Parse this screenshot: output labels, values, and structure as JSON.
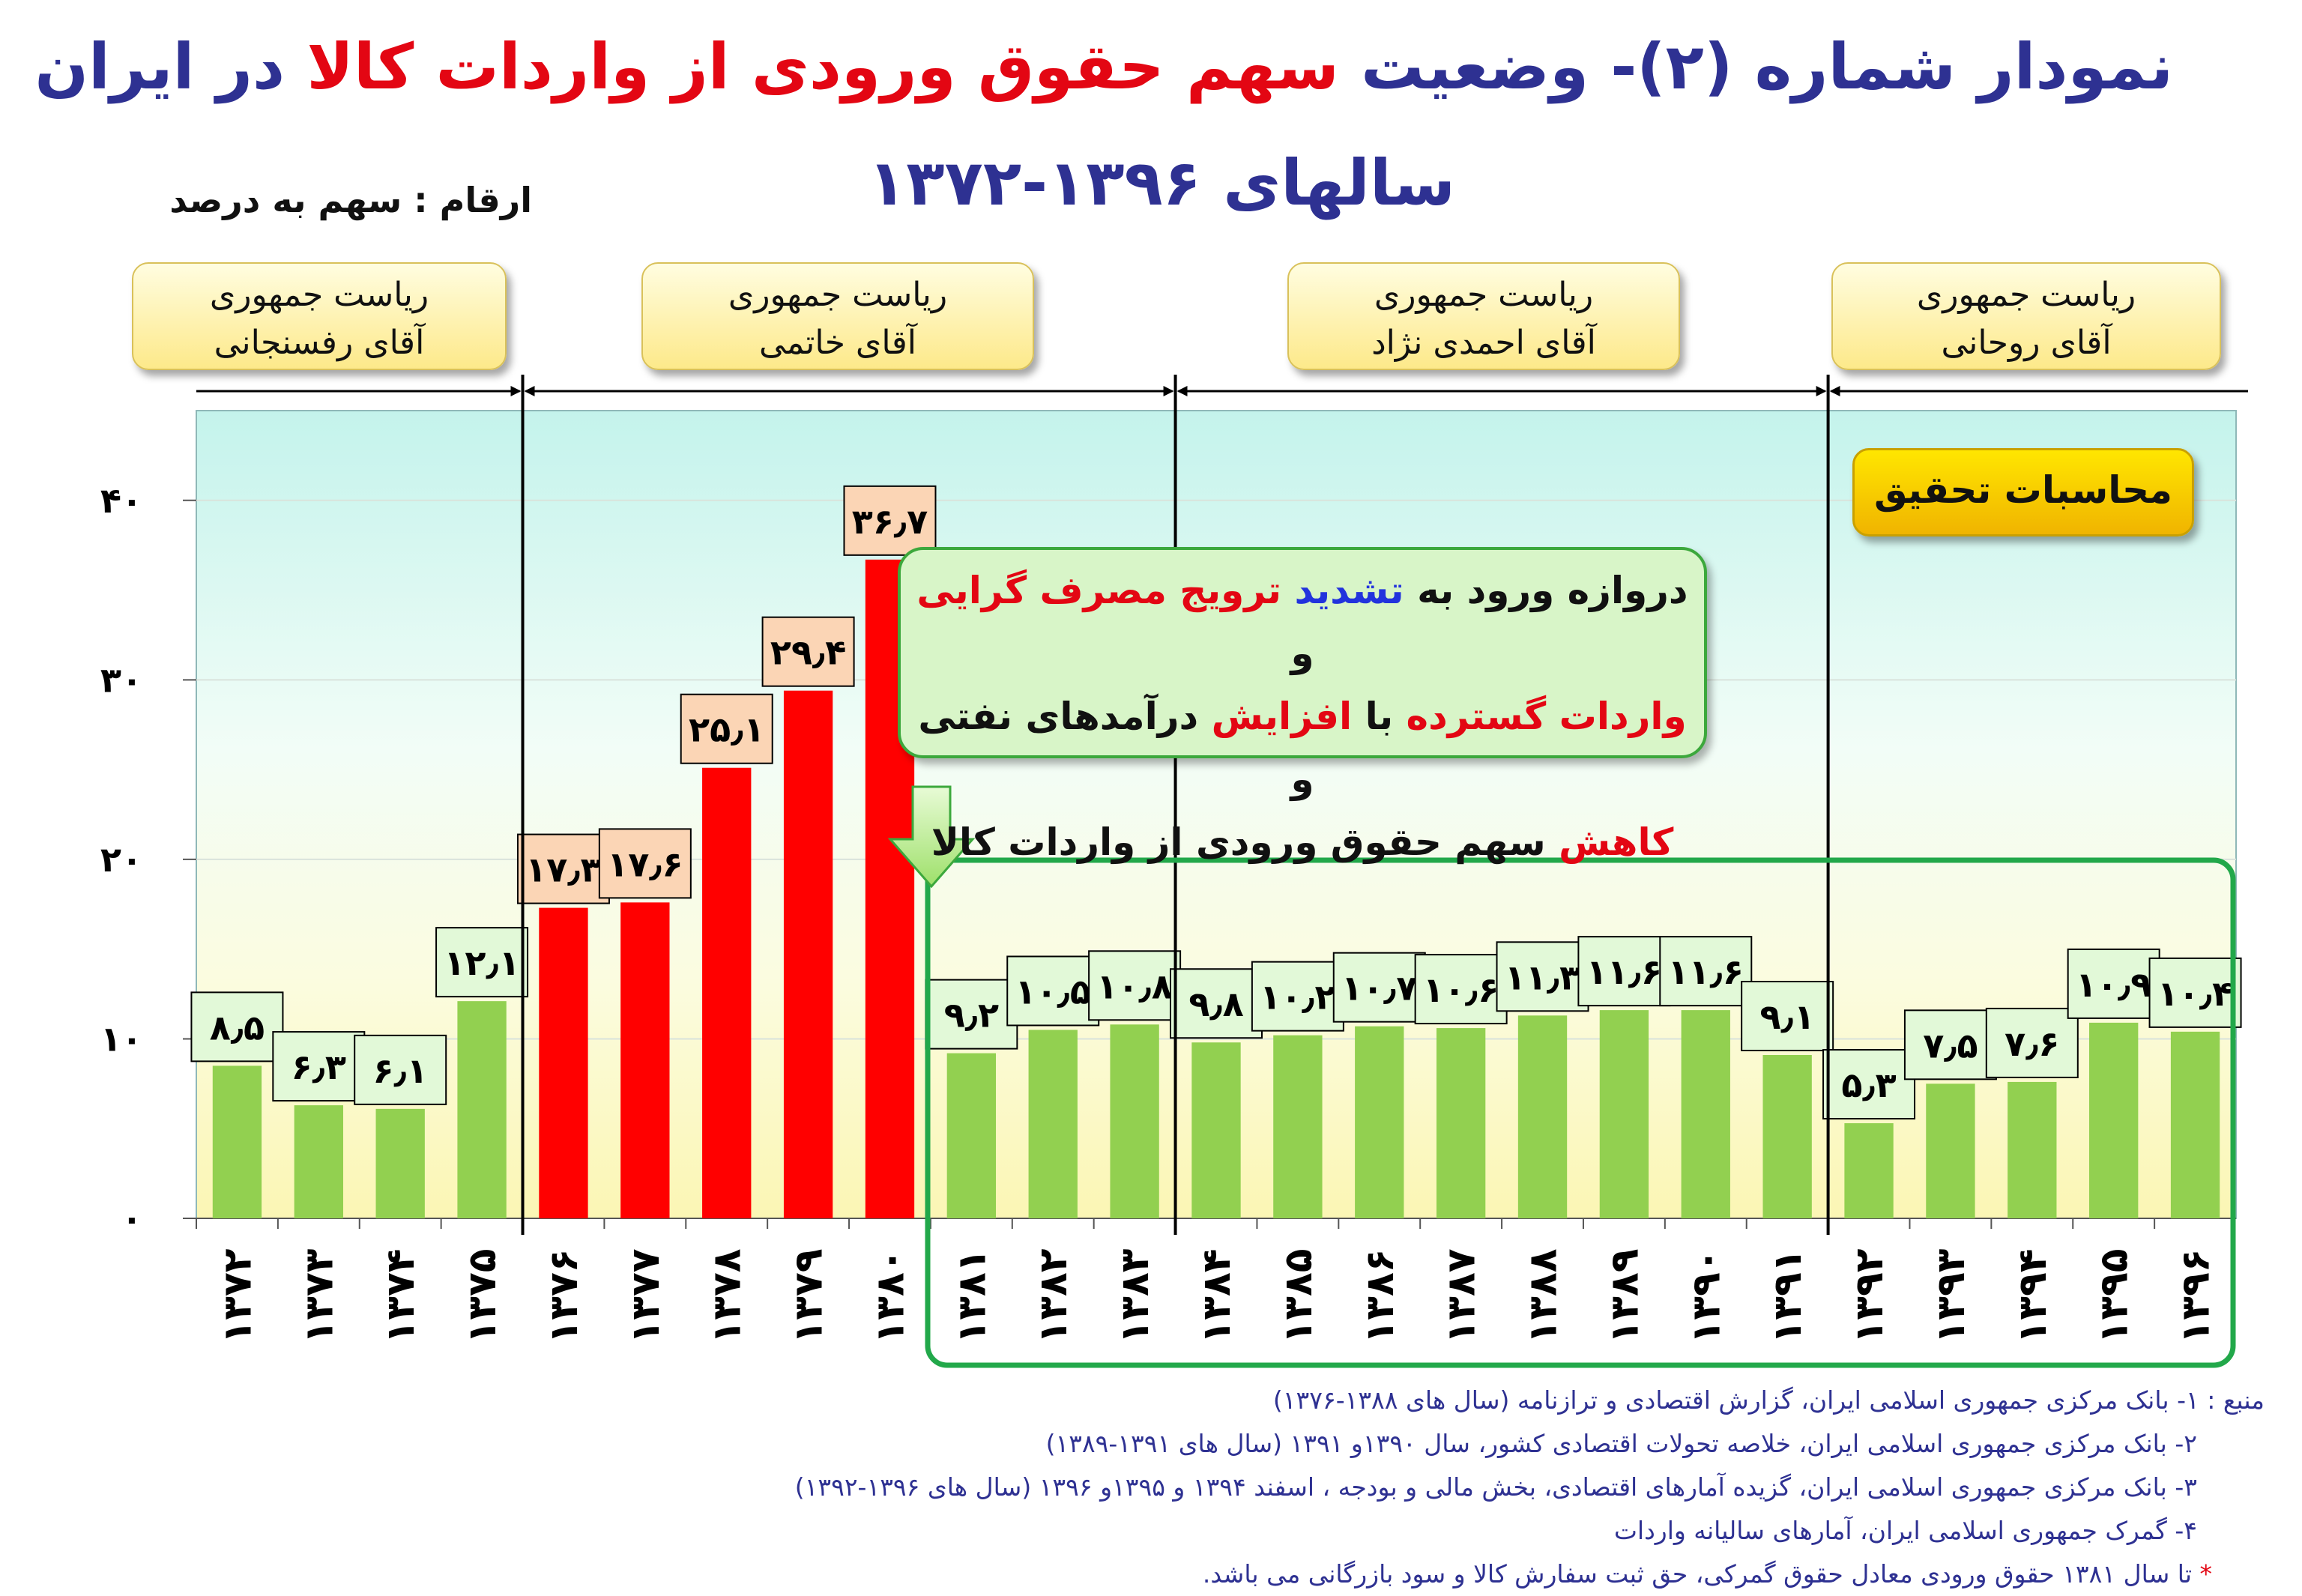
{
  "title": {
    "line1_part1": "نمودار شماره (۲)- وضعیت ",
    "line1_part2": "سهم حقوق ورودی از واردات کالا",
    "line1_part3": " در ایران",
    "line2": "سالهای ۱۳۹۶-۱۳۷۲"
  },
  "units_label": "ارقام : سهم به درصد",
  "presidencies": [
    {
      "line1": "ریاست جمهوری",
      "line2": "آقای رفسنجانی"
    },
    {
      "line1": "ریاست جمهوری",
      "line2": "آقای خاتمی"
    },
    {
      "line1": "ریاست جمهوری",
      "line2": "آقای احمدی نژاد"
    },
    {
      "line1": "ریاست جمهوری",
      "line2": "آقای روحانی"
    }
  ],
  "research_badge": "محاسبات تحقیق",
  "callout": {
    "p1": "دروازه ورود به ",
    "p2": "تشدید",
    "p3": " ",
    "p4": "ترویج مصرف گرایی",
    "p5": " و",
    "p6": "واردات گسترده",
    "p7": " با ",
    "p8": "افزایش",
    "p9": " درآمدهای نفتی و",
    "p10": "کاهش",
    "p11": " سهم حقوق ورودی از واردات کالا"
  },
  "sources": {
    "line1": "منبع : ۱- بانک مرکزی جمهوری اسلامی ایران، گزارش اقتصادی و ترازنامه (سال های ۱۳۸۸-۱۳۷۶)",
    "line2": "۲- بانک مرکزی جمهوری اسلامی ایران، خلاصه تحولات اقتصادی کشور، سال ۱۳۹۰و ۱۳۹۱ (سال های ۱۳۹۱-۱۳۸۹)",
    "line3": "۳- بانک مرکزی جمهوری اسلامی ایران، گزیده آمارهای اقتصادی، بخش مالی و بودجه ، اسفند ۱۳۹۴ و ۱۳۹۵و ۱۳۹۶ (سال های ۱۳۹۶-۱۳۹۲)",
    "line4": "۴- گمرک جمهوری اسلامی ایران، آمارهای سالیانه واردات",
    "star": "*",
    "line5": " تا سال ۱۳۸۱ حقوق ورودی معادل حقوق گمرکی، حق ثبت سفارش کالا و سود بازرگانی می باشد."
  },
  "colors": {
    "green_bar": "#92d050",
    "red_bar": "#ff0000",
    "green_label_bg": "#e2f9d8",
    "red_label_bg": "#fbd5b5",
    "highlight_border": "#22a84a",
    "title": "#2e3192",
    "accent": "#e30613"
  },
  "chart_data": {
    "type": "bar",
    "categories": [
      "۱۳۷۲",
      "۱۳۷۳",
      "۱۳۷۴",
      "۱۳۷۵",
      "۱۳۷۶",
      "۱۳۷۷",
      "۱۳۷۸",
      "۱۳۷۹",
      "۱۳۸۰",
      "۱۳۸۱",
      "۱۳۸۲",
      "۱۳۸۳",
      "۱۳۸۴",
      "۱۳۸۵",
      "۱۳۸۶",
      "۱۳۸۷",
      "۱۳۸۸",
      "۱۳۸۹",
      "۱۳۹۰",
      "۱۳۹۱",
      "۱۳۹۲",
      "۱۳۹۳",
      "۱۳۹۴",
      "۱۳۹۵",
      "۱۳۹۶"
    ],
    "values": [
      8.5,
      6.3,
      6.1,
      12.1,
      17.3,
      17.6,
      25.1,
      29.4,
      36.7,
      9.2,
      10.5,
      10.8,
      9.8,
      10.2,
      10.7,
      10.6,
      11.3,
      11.6,
      11.6,
      9.1,
      5.3,
      7.5,
      7.6,
      10.9,
      10.4
    ],
    "value_labels": [
      "۸٫۵",
      "۶٫۳",
      "۶٫۱",
      "۱۲٫۱",
      "۱۷٫۳",
      "۱۷٫۶",
      "۲۵٫۱",
      "۲۹٫۴",
      "۳۶٫۷",
      "۹٫۲",
      "۱۰٫۵",
      "۱۰٫۸",
      "۹٫۸",
      "۱۰٫۲",
      "۱۰٫۷",
      "۱۰٫۶",
      "۱۱٫۳",
      "۱۱٫۶",
      "۱۱٫۶",
      "۹٫۱",
      "۵٫۳",
      "۷٫۵",
      "۷٫۶",
      "۱۰٫۹",
      "۱۰٫۴"
    ],
    "bar_colors": [
      "green",
      "green",
      "green",
      "green",
      "red",
      "red",
      "red",
      "red",
      "red",
      "green",
      "green",
      "green",
      "green",
      "green",
      "green",
      "green",
      "green",
      "green",
      "green",
      "green",
      "green",
      "green",
      "green",
      "green",
      "green"
    ],
    "ylim": [
      0,
      45
    ],
    "yticks": [
      0,
      10,
      20,
      30,
      40
    ],
    "ytick_labels": [
      "۰",
      "۱۰",
      "۲۰",
      "۳۰",
      "۴۰"
    ],
    "grid": true,
    "presidency_boundaries_after_index": [
      3,
      11,
      19
    ],
    "highlighted_range": [
      9,
      24
    ]
  }
}
